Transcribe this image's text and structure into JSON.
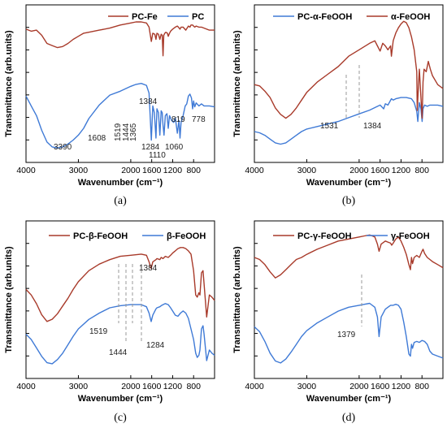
{
  "panels": [
    {
      "caption": "(a)",
      "xlabel": "Wavenumber (cm⁻¹)",
      "ylabel": "Transmittance (arb.units)",
      "legend": [
        "PC-Fe",
        "PC"
      ],
      "annotations": [
        "1384",
        "1608",
        "1519",
        "1444",
        "1365",
        "1284",
        "1110",
        "1060",
        "819",
        "778",
        "3390"
      ]
    },
    {
      "caption": "(b)",
      "xlabel": "Wavenumber (cm⁻¹)",
      "ylabel": "Transmittance (arb.units)",
      "legend": [
        "PC-α-FeOOH",
        "α-FeOOH"
      ],
      "annotations": [
        "1531",
        "1384"
      ]
    },
    {
      "caption": "(c)",
      "xlabel": "Wavenumber (cm⁻¹)",
      "ylabel": "Transmittance (arb.units)",
      "legend": [
        "PC-β-FeOOH",
        "β-FeOOH"
      ],
      "annotations": [
        "1384",
        "1519",
        "1444",
        "1284"
      ]
    },
    {
      "caption": "(d)",
      "xlabel": "Wavenumber (cm⁻¹)",
      "ylabel": "Transmittance (arb.units)",
      "legend": [
        "PC-γ-FeOOH",
        "γ-FeOOH"
      ],
      "annotations": [
        "1379"
      ]
    }
  ],
  "colors": {
    "red": "#a83a2a",
    "blue": "#3f7ad6",
    "dash": "#999999"
  },
  "chart_data": [
    {
      "type": "line",
      "xlabel": "Wavenumber (cm⁻¹)",
      "ylabel": "Transmittance (arb.units)",
      "xlim": [
        4000,
        400
      ],
      "x_reversed": true,
      "xticks": [
        4000,
        3000,
        2000,
        1600,
        1200,
        800
      ],
      "ylim": [
        0,
        1
      ],
      "series": [
        {
          "name": "PC-Fe",
          "color": "#a83a2a",
          "x": [
            4000,
            3900,
            3800,
            3700,
            3600,
            3500,
            3400,
            3300,
            3200,
            3100,
            3000,
            2900,
            2800,
            2600,
            2400,
            2200,
            2000,
            1900,
            1800,
            1700,
            1650,
            1608,
            1580,
            1540,
            1519,
            1500,
            1470,
            1444,
            1420,
            1400,
            1384,
            1370,
            1350,
            1330,
            1300,
            1284,
            1260,
            1240,
            1200,
            1150,
            1110,
            1090,
            1060,
            1040,
            1000,
            950,
            900,
            870,
            850,
            819,
            800,
            778,
            750,
            700,
            650,
            600,
            500,
            400
          ],
          "y": [
            0.84,
            0.82,
            0.83,
            0.78,
            0.7,
            0.68,
            0.66,
            0.67,
            0.7,
            0.74,
            0.77,
            0.8,
            0.81,
            0.83,
            0.85,
            0.88,
            0.9,
            0.91,
            0.91,
            0.9,
            0.86,
            0.72,
            0.8,
            0.79,
            0.74,
            0.8,
            0.79,
            0.74,
            0.79,
            0.78,
            0.58,
            0.78,
            0.8,
            0.81,
            0.8,
            0.77,
            0.8,
            0.82,
            0.84,
            0.86,
            0.87,
            0.86,
            0.84,
            0.86,
            0.86,
            0.83,
            0.87,
            0.86,
            0.88,
            0.88,
            0.87,
            0.86,
            0.87,
            0.86,
            0.86,
            0.85,
            0.83,
            0.83
          ]
        },
        {
          "name": "PC",
          "color": "#3f7ad6",
          "x": [
            4000,
            3900,
            3800,
            3700,
            3600,
            3500,
            3400,
            3390,
            3300,
            3200,
            3100,
            3000,
            2900,
            2800,
            2600,
            2400,
            2200,
            2000,
            1900,
            1800,
            1700,
            1650,
            1608,
            1580,
            1550,
            1519,
            1500,
            1470,
            1444,
            1420,
            1400,
            1384,
            1365,
            1340,
            1310,
            1284,
            1260,
            1220,
            1180,
            1150,
            1110,
            1080,
            1060,
            1040,
            1000,
            960,
            930,
            900,
            870,
            840,
            819,
            800,
            778,
            750,
            700,
            650,
            600,
            500,
            400
          ],
          "y": [
            0.55,
            0.45,
            0.35,
            0.2,
            0.08,
            0.03,
            0.02,
            0.02,
            0.03,
            0.06,
            0.1,
            0.15,
            0.22,
            0.32,
            0.46,
            0.56,
            0.6,
            0.65,
            0.67,
            0.68,
            0.66,
            0.58,
            0.1,
            0.45,
            0.38,
            0.12,
            0.42,
            0.38,
            0.15,
            0.4,
            0.38,
            0.25,
            0.15,
            0.35,
            0.37,
            0.22,
            0.35,
            0.3,
            0.28,
            0.33,
            0.17,
            0.3,
            0.12,
            0.28,
            0.35,
            0.45,
            0.47,
            0.55,
            0.57,
            0.53,
            0.42,
            0.5,
            0.44,
            0.48,
            0.45,
            0.47,
            0.45,
            0.45,
            0.44
          ]
        }
      ]
    },
    {
      "type": "line",
      "xlabel": "Wavenumber (cm⁻¹)",
      "ylabel": "Transmittance (arb.units)",
      "xlim": [
        4000,
        400
      ],
      "x_reversed": true,
      "xticks": [
        4000,
        3000,
        2000,
        1600,
        1200,
        800
      ],
      "ylim": [
        0,
        1
      ],
      "series": [
        {
          "name": "PC-α-FeOOH",
          "color": "#3f7ad6",
          "x": [
            4000,
            3900,
            3800,
            3700,
            3600,
            3500,
            3400,
            3300,
            3200,
            3100,
            3000,
            2800,
            2600,
            2400,
            2200,
            2000,
            1800,
            1700,
            1600,
            1531,
            1500,
            1450,
            1384,
            1350,
            1300,
            1200,
            1100,
            1000,
            950,
            900,
            880,
            850,
            820,
            797,
            780,
            750,
            700,
            650,
            600,
            500,
            400
          ],
          "y": [
            0.12,
            0.11,
            0.09,
            0.06,
            0.03,
            0.02,
            0.03,
            0.06,
            0.09,
            0.12,
            0.14,
            0.16,
            0.18,
            0.2,
            0.23,
            0.26,
            0.29,
            0.31,
            0.33,
            0.3,
            0.34,
            0.33,
            0.38,
            0.37,
            0.38,
            0.39,
            0.39,
            0.38,
            0.35,
            0.28,
            0.2,
            0.35,
            0.3,
            0.2,
            0.3,
            0.33,
            0.32,
            0.33,
            0.33,
            0.33,
            0.32
          ]
        },
        {
          "name": "α-FeOOH",
          "color": "#a83a2a",
          "x": [
            4000,
            3900,
            3800,
            3700,
            3600,
            3500,
            3400,
            3300,
            3200,
            3100,
            3000,
            2800,
            2600,
            2400,
            2200,
            2000,
            1800,
            1700,
            1650,
            1600,
            1550,
            1500,
            1450,
            1400,
            1384,
            1350,
            1300,
            1250,
            1200,
            1150,
            1100,
            1050,
            1000,
            950,
            900,
            890,
            870,
            850,
            830,
            797,
            780,
            760,
            720,
            680,
            640,
            600,
            500,
            400
          ],
          "y": [
            0.48,
            0.47,
            0.43,
            0.38,
            0.3,
            0.25,
            0.22,
            0.25,
            0.3,
            0.36,
            0.42,
            0.5,
            0.56,
            0.62,
            0.7,
            0.75,
            0.8,
            0.82,
            0.78,
            0.74,
            0.8,
            0.78,
            0.75,
            0.78,
            0.7,
            0.82,
            0.88,
            0.92,
            0.95,
            0.97,
            0.96,
            0.92,
            0.85,
            0.75,
            0.58,
            0.28,
            0.45,
            0.6,
            0.45,
            0.22,
            0.5,
            0.6,
            0.58,
            0.66,
            0.6,
            0.55,
            0.48,
            0.45
          ]
        }
      ]
    },
    {
      "type": "line",
      "xlabel": "Wavenumber (cm⁻¹)",
      "ylabel": "Transmittance (arb.units)",
      "xlim": [
        4000,
        400
      ],
      "x_reversed": true,
      "xticks": [
        4000,
        3000,
        2000,
        1600,
        1200,
        800
      ],
      "ylim": [
        0,
        1
      ],
      "series": [
        {
          "name": "PC-β-FeOOH",
          "color": "#a83a2a",
          "x": [
            4000,
            3900,
            3800,
            3700,
            3600,
            3500,
            3400,
            3300,
            3200,
            3100,
            3000,
            2800,
            2600,
            2400,
            2200,
            2000,
            1800,
            1700,
            1650,
            1610,
            1580,
            1519,
            1500,
            1444,
            1420,
            1384,
            1340,
            1284,
            1240,
            1200,
            1150,
            1100,
            1050,
            1000,
            950,
            900,
            850,
            800,
            760,
            730,
            700,
            680,
            650,
            620,
            600,
            550,
            500,
            450,
            400
          ],
          "y": [
            0.55,
            0.5,
            0.42,
            0.32,
            0.26,
            0.28,
            0.33,
            0.4,
            0.47,
            0.55,
            0.62,
            0.72,
            0.78,
            0.82,
            0.85,
            0.86,
            0.87,
            0.86,
            0.8,
            0.74,
            0.8,
            0.82,
            0.83,
            0.82,
            0.84,
            0.83,
            0.85,
            0.84,
            0.86,
            0.88,
            0.9,
            0.92,
            0.93,
            0.93,
            0.92,
            0.9,
            0.87,
            0.72,
            0.5,
            0.48,
            0.52,
            0.5,
            0.7,
            0.72,
            0.6,
            0.3,
            0.5,
            0.48,
            0.45
          ]
        },
        {
          "name": "β-FeOOH",
          "color": "#3f7ad6",
          "x": [
            4000,
            3900,
            3800,
            3700,
            3600,
            3500,
            3400,
            3300,
            3200,
            3100,
            3000,
            2800,
            2600,
            2400,
            2200,
            2000,
            1800,
            1700,
            1650,
            1610,
            1580,
            1519,
            1500,
            1444,
            1420,
            1384,
            1340,
            1284,
            1240,
            1200,
            1150,
            1100,
            1050,
            1000,
            950,
            900,
            850,
            800,
            760,
            730,
            700,
            680,
            650,
            620,
            600,
            550,
            500,
            450,
            400
          ],
          "y": [
            0.3,
            0.25,
            0.17,
            0.09,
            0.03,
            0.02,
            0.06,
            0.12,
            0.2,
            0.28,
            0.35,
            0.44,
            0.5,
            0.55,
            0.57,
            0.58,
            0.58,
            0.56,
            0.5,
            0.42,
            0.48,
            0.54,
            0.55,
            0.56,
            0.57,
            0.58,
            0.59,
            0.58,
            0.55,
            0.52,
            0.48,
            0.47,
            0.5,
            0.52,
            0.5,
            0.45,
            0.35,
            0.25,
            0.12,
            0.08,
            0.1,
            0.15,
            0.35,
            0.38,
            0.3,
            0.05,
            0.15,
            0.12,
            0.1
          ]
        }
      ]
    },
    {
      "type": "line",
      "xlabel": "Wavenumber (cm⁻¹)",
      "ylabel": "Transmittance (arb.units)",
      "xlim": [
        4000,
        400
      ],
      "x_reversed": true,
      "xticks": [
        4000,
        3000,
        2000,
        1600,
        1200,
        800
      ],
      "ylim": [
        0,
        1
      ],
      "series": [
        {
          "name": "PC-γ-FeOOH",
          "color": "#a83a2a",
          "x": [
            4000,
            3900,
            3800,
            3700,
            3600,
            3500,
            3400,
            3300,
            3200,
            3100,
            3000,
            2800,
            2600,
            2400,
            2200,
            2000,
            1900,
            1800,
            1750,
            1700,
            1650,
            1620,
            1580,
            1500,
            1450,
            1400,
            1379,
            1350,
            1300,
            1250,
            1200,
            1150,
            1100,
            1050,
            1020,
            1000,
            980,
            950,
            900,
            850,
            800,
            780,
            750,
            700,
            650,
            600,
            500,
            400
          ],
          "y": [
            0.72,
            0.7,
            0.65,
            0.58,
            0.52,
            0.55,
            0.6,
            0.65,
            0.7,
            0.72,
            0.75,
            0.8,
            0.84,
            0.88,
            0.9,
            0.92,
            0.93,
            0.94,
            0.93,
            0.92,
            0.85,
            0.78,
            0.85,
            0.88,
            0.87,
            0.86,
            0.84,
            0.86,
            0.9,
            0.92,
            0.88,
            0.82,
            0.75,
            0.65,
            0.6,
            0.72,
            0.66,
            0.72,
            0.74,
            0.72,
            0.78,
            0.8,
            0.76,
            0.72,
            0.7,
            0.68,
            0.65,
            0.62
          ]
        },
        {
          "name": "γ-FeOOH",
          "color": "#3f7ad6",
          "x": [
            4000,
            3900,
            3800,
            3700,
            3600,
            3500,
            3400,
            3300,
            3200,
            3100,
            3000,
            2800,
            2600,
            2400,
            2200,
            2000,
            1900,
            1800,
            1700,
            1650,
            1620,
            1580,
            1500,
            1450,
            1400,
            1379,
            1350,
            1300,
            1250,
            1200,
            1150,
            1100,
            1050,
            1020,
            1000,
            980,
            950,
            900,
            850,
            800,
            750,
            700,
            650,
            600,
            500,
            400
          ],
          "y": [
            0.4,
            0.35,
            0.25,
            0.13,
            0.05,
            0.03,
            0.07,
            0.14,
            0.22,
            0.3,
            0.36,
            0.44,
            0.5,
            0.56,
            0.6,
            0.62,
            0.63,
            0.64,
            0.6,
            0.5,
            0.3,
            0.5,
            0.58,
            0.6,
            0.62,
            0.62,
            0.62,
            0.63,
            0.62,
            0.58,
            0.45,
            0.3,
            0.12,
            0.1,
            0.22,
            0.18,
            0.24,
            0.25,
            0.24,
            0.26,
            0.25,
            0.22,
            0.15,
            0.12,
            0.1,
            0.08
          ]
        }
      ]
    }
  ]
}
